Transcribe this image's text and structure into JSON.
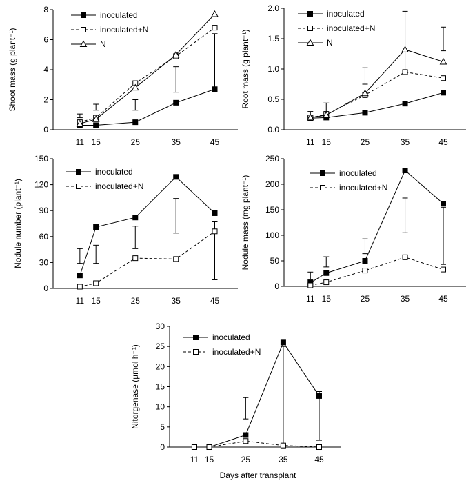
{
  "chart_data": [
    {
      "type": "line",
      "ylabel": "Shoot mass (g plant⁻¹)",
      "x": [
        11,
        15,
        25,
        35,
        45
      ],
      "xticks": [
        "11",
        "15",
        "25",
        "35",
        "45"
      ],
      "ylim": [
        0,
        8
      ],
      "yticks": [
        "0",
        "2",
        "4",
        "6",
        "8"
      ],
      "series": [
        {
          "name": "inoculated",
          "values": [
            0.3,
            0.3,
            0.5,
            1.8,
            2.7
          ],
          "marker": "square-filled",
          "dash": "solid"
        },
        {
          "name": "inoculated+N",
          "values": [
            0.5,
            0.8,
            3.1,
            4.9,
            6.8
          ],
          "marker": "square-open",
          "dash": "dashed"
        },
        {
          "name": "N",
          "values": [
            0.4,
            0.7,
            2.8,
            5.0,
            7.7
          ],
          "marker": "triangle-open",
          "dash": "solid"
        }
      ],
      "errorbars": [
        {
          "x": 11,
          "low": 0.8,
          "high": 1.05
        },
        {
          "x": 15,
          "low": 1.3,
          "high": 1.7
        },
        {
          "x": 25,
          "low": 1.3,
          "high": 2.0
        },
        {
          "x": 35,
          "low": 2.5,
          "high": 4.2
        },
        {
          "x": 45,
          "low": 2.8,
          "high": 6.4
        }
      ],
      "legend": "top-left"
    },
    {
      "type": "line",
      "ylabel": "Root mass (g plant⁻¹)",
      "x": [
        11,
        15,
        25,
        35,
        45
      ],
      "xticks": [
        "11",
        "15",
        "25",
        "35",
        "45"
      ],
      "ylim": [
        0,
        2.0
      ],
      "yticks": [
        "0.0",
        "0.5",
        "1.0",
        "1.5",
        "2.0"
      ],
      "series": [
        {
          "name": "inoculated",
          "values": [
            0.19,
            0.2,
            0.28,
            0.43,
            0.61
          ],
          "marker": "square-filled",
          "dash": "solid"
        },
        {
          "name": "inoculated+N",
          "values": [
            0.2,
            0.25,
            0.57,
            0.95,
            0.85
          ],
          "marker": "square-open",
          "dash": "dashed"
        },
        {
          "name": "N",
          "values": [
            0.2,
            0.24,
            0.6,
            1.32,
            1.12
          ],
          "marker": "triangle-open",
          "dash": "solid"
        }
      ],
      "errorbars": [
        {
          "x": 11,
          "low": 0.22,
          "high": 0.3
        },
        {
          "x": 15,
          "low": 0.3,
          "high": 0.44
        },
        {
          "x": 25,
          "low": 0.75,
          "high": 1.02
        },
        {
          "x": 35,
          "low": 0.98,
          "high": 1.95
        },
        {
          "x": 45,
          "low": 1.3,
          "high": 1.69
        }
      ],
      "legend": "top-left"
    },
    {
      "type": "line",
      "ylabel": "Nodule number (plant⁻¹)",
      "x": [
        11,
        15,
        25,
        35,
        45
      ],
      "xticks": [
        "11",
        "15",
        "25",
        "35",
        "45"
      ],
      "ylim": [
        0,
        150
      ],
      "yticks": [
        "0",
        "30",
        "60",
        "90",
        "120",
        "150"
      ],
      "series": [
        {
          "name": "inoculated",
          "values": [
            15,
            71,
            82,
            129,
            87
          ],
          "marker": "square-filled",
          "dash": "solid"
        },
        {
          "name": "inoculated+N",
          "values": [
            2,
            6,
            35,
            34,
            66
          ],
          "marker": "square-open",
          "dash": "dashed"
        }
      ],
      "errorbars": [
        {
          "x": 11,
          "low": 29,
          "high": 46
        },
        {
          "x": 15,
          "low": 29,
          "high": 50
        },
        {
          "x": 25,
          "low": 46,
          "high": 72
        },
        {
          "x": 35,
          "low": 64,
          "high": 104
        },
        {
          "x": 45,
          "low": 10,
          "high": 77
        }
      ],
      "legend": "top-left"
    },
    {
      "type": "line",
      "ylabel": "Nodule mass (mg plant⁻¹)",
      "x": [
        11,
        15,
        25,
        35,
        45
      ],
      "xticks": [
        "11",
        "15",
        "25",
        "35",
        "45"
      ],
      "ylim": [
        0,
        250
      ],
      "yticks": [
        "0",
        "50",
        "100",
        "150",
        "200",
        "250"
      ],
      "series": [
        {
          "name": "inoculated",
          "values": [
            7,
            26,
            50,
            227,
            162
          ],
          "marker": "square-filled",
          "dash": "solid"
        },
        {
          "name": "inoculated+N",
          "values": [
            2,
            8,
            31,
            57,
            33
          ],
          "marker": "square-open",
          "dash": "dashed"
        }
      ],
      "errorbars": [
        {
          "x": 11,
          "low": 13,
          "high": 28
        },
        {
          "x": 15,
          "low": 38,
          "high": 58
        },
        {
          "x": 25,
          "low": 64,
          "high": 93
        },
        {
          "x": 35,
          "low": 105,
          "high": 173
        },
        {
          "x": 45,
          "low": 43,
          "high": 155
        }
      ],
      "legend": "top-left"
    },
    {
      "type": "line",
      "ylabel": "Nitorgenase (µmol h⁻¹)",
      "xlabel": "Days after transplant",
      "x": [
        11,
        15,
        25,
        35,
        45
      ],
      "xticks": [
        "11",
        "15",
        "25",
        "35",
        "45"
      ],
      "ylim": [
        0,
        30
      ],
      "yticks": [
        "0",
        "5",
        "10",
        "15",
        "20",
        "25",
        "30"
      ],
      "series": [
        {
          "name": "inoculated",
          "values": [
            0,
            0,
            3,
            26,
            12.7
          ],
          "marker": "square-filled",
          "dash": "solid"
        },
        {
          "name": "inoculated+N",
          "values": [
            0,
            0,
            1.5,
            0.4,
            0
          ],
          "marker": "square-open",
          "dash": "dashed"
        }
      ],
      "errorbars": [
        {
          "x": 25,
          "low": 7,
          "high": 12.3
        },
        {
          "x": 35,
          "low": 0.5,
          "high": 25
        },
        {
          "x": 45,
          "low": 1.7,
          "high": 13.8
        }
      ],
      "legend": "top-left"
    }
  ]
}
